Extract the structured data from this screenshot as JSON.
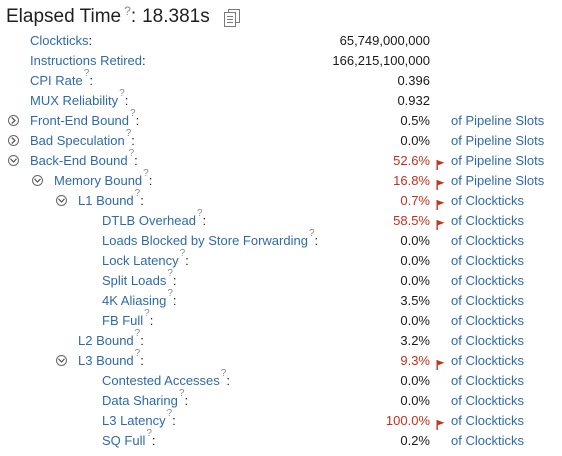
{
  "header": {
    "title": "Elapsed Time",
    "help": "?",
    "colon": ":",
    "value": "18.381s"
  },
  "rows": [
    {
      "name": "clockticks-row",
      "label": "Clockticks",
      "colon": ":",
      "value": "65,749,000,000",
      "unit": "",
      "help": false,
      "toggle": null,
      "flag": false,
      "highlight": false,
      "depth": 0
    },
    {
      "name": "instructions-retired-row",
      "label": "Instructions Retired",
      "colon": ":",
      "value": "166,215,100,000",
      "unit": "",
      "help": false,
      "toggle": null,
      "flag": false,
      "highlight": false,
      "depth": 0
    },
    {
      "name": "cpi-rate-row",
      "label": "CPI Rate",
      "colon": ":",
      "value": "0.396",
      "unit": "",
      "help": true,
      "toggle": null,
      "flag": false,
      "highlight": false,
      "depth": 0
    },
    {
      "name": "mux-reliability-row",
      "label": "MUX Reliability",
      "colon": ":",
      "value": "0.932",
      "unit": "",
      "help": true,
      "toggle": null,
      "flag": false,
      "highlight": false,
      "depth": 0
    },
    {
      "name": "front-end-bound-row",
      "label": "Front-End Bound",
      "colon": ":",
      "value": "0.5%",
      "unit": "of Pipeline Slots",
      "help": true,
      "toggle": "collapsed",
      "flag": false,
      "highlight": false,
      "depth": 0
    },
    {
      "name": "bad-speculation-row",
      "label": "Bad Speculation",
      "colon": ":",
      "value": "0.0%",
      "unit": "of Pipeline Slots",
      "help": true,
      "toggle": "collapsed",
      "flag": false,
      "highlight": false,
      "depth": 0
    },
    {
      "name": "back-end-bound-row",
      "label": "Back-End Bound",
      "colon": ":",
      "value": "52.6%",
      "unit": "of Pipeline Slots",
      "help": true,
      "toggle": "expanded",
      "flag": true,
      "highlight": true,
      "depth": 0
    },
    {
      "name": "memory-bound-row",
      "label": "Memory Bound",
      "colon": ":",
      "value": "16.8%",
      "unit": "of Pipeline Slots",
      "help": true,
      "toggle": "expanded",
      "flag": true,
      "highlight": true,
      "depth": 1
    },
    {
      "name": "l1-bound-row",
      "label": "L1 Bound",
      "colon": ":",
      "value": "0.7%",
      "unit": "of Clockticks",
      "help": true,
      "toggle": "expanded",
      "flag": true,
      "highlight": true,
      "depth": 2
    },
    {
      "name": "dtlb-overhead-row",
      "label": "DTLB Overhead",
      "colon": ":",
      "value": "58.5%",
      "unit": "of Clockticks",
      "help": true,
      "toggle": null,
      "flag": true,
      "highlight": true,
      "depth": 3
    },
    {
      "name": "loads-blocked-row",
      "label": "Loads Blocked by Store Forwarding",
      "colon": ":",
      "value": "0.0%",
      "unit": "of Clockticks",
      "help": true,
      "toggle": null,
      "flag": false,
      "highlight": false,
      "depth": 3
    },
    {
      "name": "lock-latency-row",
      "label": "Lock Latency",
      "colon": ":",
      "value": "0.0%",
      "unit": "of Clockticks",
      "help": true,
      "toggle": null,
      "flag": false,
      "highlight": false,
      "depth": 3
    },
    {
      "name": "split-loads-row",
      "label": "Split Loads",
      "colon": ":",
      "value": "0.0%",
      "unit": "of Clockticks",
      "help": true,
      "toggle": null,
      "flag": false,
      "highlight": false,
      "depth": 3
    },
    {
      "name": "4k-aliasing-row",
      "label": "4K Aliasing",
      "colon": ":",
      "value": "3.5%",
      "unit": "of Clockticks",
      "help": true,
      "toggle": null,
      "flag": false,
      "highlight": false,
      "depth": 3
    },
    {
      "name": "fb-full-row",
      "label": "FB Full",
      "colon": ":",
      "value": "0.0%",
      "unit": "of Clockticks",
      "help": true,
      "toggle": null,
      "flag": false,
      "highlight": false,
      "depth": 3
    },
    {
      "name": "l2-bound-row",
      "label": "L2 Bound",
      "colon": ":",
      "value": "3.2%",
      "unit": "of Clockticks",
      "help": true,
      "toggle": null,
      "flag": false,
      "highlight": false,
      "depth": 2
    },
    {
      "name": "l3-bound-row",
      "label": "L3 Bound",
      "colon": ":",
      "value": "9.3%",
      "unit": "of Clockticks",
      "help": true,
      "toggle": "expanded",
      "flag": true,
      "highlight": true,
      "depth": 2
    },
    {
      "name": "contested-accesses-row",
      "label": "Contested Accesses",
      "colon": ":",
      "value": "0.0%",
      "unit": "of Clockticks",
      "help": true,
      "toggle": null,
      "flag": false,
      "highlight": false,
      "depth": 3
    },
    {
      "name": "data-sharing-row",
      "label": "Data Sharing",
      "colon": ":",
      "value": "0.0%",
      "unit": "of Clockticks",
      "help": true,
      "toggle": null,
      "flag": false,
      "highlight": false,
      "depth": 3
    },
    {
      "name": "l3-latency-row",
      "label": "L3 Latency",
      "colon": ":",
      "value": "100.0%",
      "unit": "of Clockticks",
      "help": true,
      "toggle": null,
      "flag": true,
      "highlight": true,
      "depth": 3
    },
    {
      "name": "sq-full-row",
      "label": "SQ Full",
      "colon": ":",
      "value": "0.2%",
      "unit": "of Clockticks",
      "help": true,
      "toggle": null,
      "flag": false,
      "highlight": false,
      "depth": 3
    }
  ],
  "icons": {
    "help": "question-circle-icon",
    "copy": "copy-icon",
    "flag": "flag-icon",
    "collapsed": "expand-circle-icon",
    "expanded": "collapse-circle-icon"
  },
  "colors": {
    "link": "#2f6aa8",
    "highlight": "#c0321e",
    "text": "#1a1a1a"
  }
}
